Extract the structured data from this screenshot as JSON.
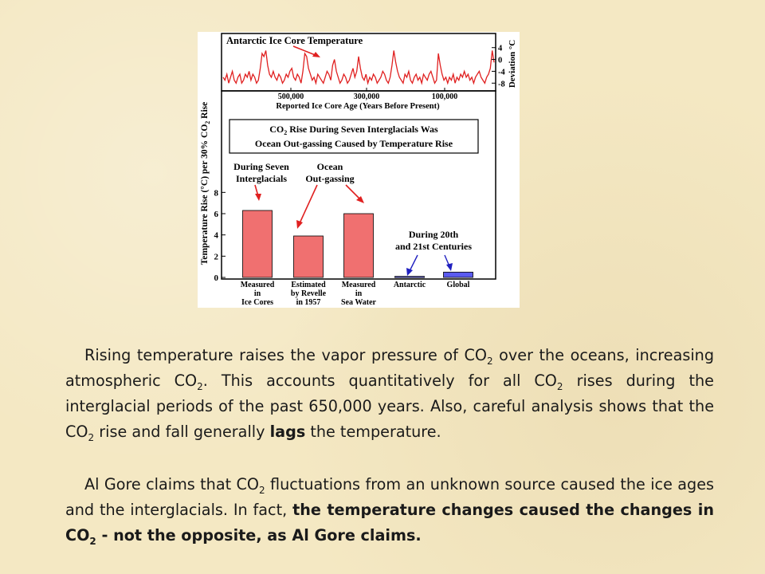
{
  "chart_data": {
    "type": "bar",
    "top_panel": {
      "title": "Antarctic Ice Core Temperature",
      "xlabel": "Reported Ice Core Age (Years Before Present)",
      "xticks": [
        "500,000",
        "300,000",
        "100,000"
      ],
      "ylabel": "Deviation °C",
      "yticks": [
        "4",
        "0",
        "-4",
        "-8"
      ],
      "ylim": [
        -9,
        5
      ],
      "series_temperature": [
        -6,
        -7,
        -5,
        -8,
        -6,
        -4,
        -7,
        -8,
        -6,
        -5,
        -8,
        -7,
        -5,
        -6,
        -4,
        -7,
        -5,
        -6,
        -8,
        -7,
        -3,
        2,
        1,
        3,
        -2,
        -5,
        -6,
        -4,
        -6,
        -7,
        -5,
        -6,
        -8,
        -7,
        -5,
        -6,
        -4,
        -3,
        -6,
        -7,
        -5,
        -6,
        -8,
        -4,
        2,
        1,
        -3,
        -5,
        -7,
        -6,
        -8,
        -5,
        -6,
        -7,
        -8,
        -6,
        -4,
        -5,
        -7,
        -2,
        0,
        -4,
        -6,
        -8,
        -7,
        -5,
        -6,
        -8,
        -7,
        -5,
        -3,
        -6,
        -4,
        1,
        -3,
        -6,
        -7,
        -5,
        -8,
        -6,
        -7,
        -5,
        -6,
        -8,
        -7,
        -6,
        -4,
        -5,
        -7,
        -8,
        -6,
        -2,
        3,
        -1,
        -4,
        -6,
        -7,
        -8,
        -5,
        -6,
        -4,
        -7,
        -8,
        -6,
        -5,
        -7,
        -6,
        -8,
        -5,
        -6,
        -7,
        -5,
        -4,
        -6,
        -8,
        -7,
        2,
        -2,
        -5,
        -7,
        -6,
        -8,
        -6,
        -7,
        -5,
        -8,
        -6,
        -7,
        -5,
        -6,
        -4,
        -6,
        -5,
        -7,
        -6,
        -8,
        -6,
        -5,
        -4,
        -6,
        -7,
        -8,
        -6,
        -5,
        -3,
        3,
        -1
      ],
      "ice_age_note": ""
    },
    "bottom_panel": {
      "boxed_text_line1": "CO",
      "boxed_text_sub": "2",
      "boxed_text_line1_rest": " Rise During Seven Interglacials Was",
      "boxed_text_line2": "Ocean Out-gassing Caused by Temperature Rise",
      "ylabel_pre": "Temperature Rise (°C) per 30% CO",
      "ylabel_sub": "2",
      "ylabel_post": " Rise",
      "yticks": [
        "0",
        "2",
        "4",
        "6",
        "8"
      ],
      "ylim": [
        0,
        9
      ],
      "annotation_left_1": "During Seven",
      "annotation_left_2": "Interglacials",
      "annotation_mid_1": "Ocean",
      "annotation_mid_2": "Out-gassing",
      "annotation_right_1": "During 20th",
      "annotation_right_2": "and 21st Centuries",
      "categories": [
        {
          "lines": [
            "Measured",
            "in",
            "Ice Cores"
          ],
          "value": 6.3,
          "color": "#f07070"
        },
        {
          "lines": [
            "Estimated",
            "by Revelle",
            "in 1957"
          ],
          "value": 3.9,
          "color": "#f07070"
        },
        {
          "lines": [
            "Measured",
            "in",
            "Sea Water"
          ],
          "value": 6.0,
          "color": "#f07070"
        },
        {
          "lines": [
            "Antarctic"
          ],
          "value": 0.1,
          "color": "#5b5bf0"
        },
        {
          "lines": [
            "Global"
          ],
          "value": 0.5,
          "color": "#5b5bf0"
        }
      ]
    }
  },
  "text": {
    "p1_a": "Rising temperature raises the vapor pressure of CO",
    "p1_b": " over the oceans, increasing atmospheric CO",
    "p1_c": ". This accounts quantitatively for all CO",
    "p1_d": " rises during the interglacial periods of the past 650,000 years. Also, careful analysis shows that the CO",
    "p1_e": " rise and fall generally ",
    "p1_bold": "lags",
    "p1_f": " the temperature.",
    "p2_a": "Al Gore claims that CO",
    "p2_b": " fluctuations from an unknown source caused the ice ages and the interglacials. In fact, ",
    "p2_bold_a": "the temperature changes caused the changes in CO",
    "p2_bold_b": " - not the opposite, as Al Gore claims.",
    "sub2": "2"
  }
}
